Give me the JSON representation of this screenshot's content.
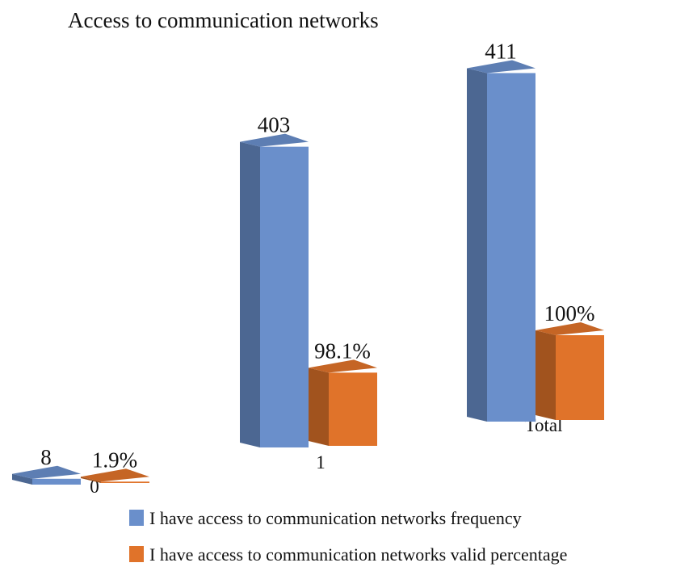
{
  "chart_data": {
    "type": "bar3d",
    "title": "Access to communication networks",
    "categories": [
      "0",
      "1",
      "Total"
    ],
    "series": [
      {
        "name": "I have access to communication networks frequency",
        "color": "#6a8fcb",
        "values": [
          8,
          403,
          411
        ]
      },
      {
        "name": "I have access to communication networks valid  percentage",
        "color": "#e0732a",
        "values": [
          1.9,
          98.1,
          100
        ],
        "value_labels": [
          "1.9%",
          "98.1%",
          "100%"
        ]
      }
    ]
  }
}
